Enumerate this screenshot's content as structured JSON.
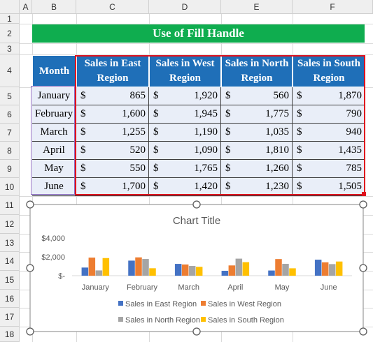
{
  "columns": [
    "A",
    "B",
    "C",
    "D",
    "E",
    "F"
  ],
  "rows": [
    "1",
    "2",
    "3",
    "4",
    "5",
    "6",
    "7",
    "8",
    "9",
    "10",
    "11",
    "12",
    "13",
    "14",
    "15",
    "16",
    "17",
    "18"
  ],
  "banner": {
    "title": "Use of Fill Handle"
  },
  "table": {
    "headers": [
      "Month",
      "Sales in East Region",
      "Sales in West Region",
      "Sales in North Region",
      "Sales in South Region"
    ],
    "currency": "$",
    "rows": [
      {
        "month": "January",
        "values": [
          "865",
          "1,920",
          "560",
          "1,870"
        ]
      },
      {
        "month": "February",
        "values": [
          "1,600",
          "1,945",
          "1,775",
          "790"
        ]
      },
      {
        "month": "March",
        "values": [
          "1,255",
          "1,190",
          "1,035",
          "940"
        ]
      },
      {
        "month": "April",
        "values": [
          "520",
          "1,090",
          "1,810",
          "1,435"
        ]
      },
      {
        "month": "May",
        "values": [
          "550",
          "1,765",
          "1,260",
          "785"
        ]
      },
      {
        "month": "June",
        "values": [
          "1,700",
          "1,420",
          "1,230",
          "1,505"
        ]
      }
    ]
  },
  "colors": {
    "header_fill": "#1f6fb8",
    "banner_fill": "#0fad4f",
    "selection_border": "#e0111d",
    "series": [
      "#4472c4",
      "#ed7d31",
      "#a5a5a5",
      "#ffc000"
    ]
  },
  "chart_data": {
    "type": "bar",
    "title": "Chart Title",
    "categories": [
      "January",
      "February",
      "March",
      "April",
      "May",
      "June"
    ],
    "series": [
      {
        "name": "Sales in East Region",
        "values": [
          865,
          1600,
          1255,
          520,
          550,
          1700
        ]
      },
      {
        "name": "Sales in West Region",
        "values": [
          1920,
          1945,
          1190,
          1090,
          1765,
          1420
        ]
      },
      {
        "name": "Sales in North Region",
        "values": [
          560,
          1775,
          1035,
          1810,
          1260,
          1230
        ]
      },
      {
        "name": "Sales in South Region",
        "values": [
          1870,
          790,
          940,
          1435,
          785,
          1505
        ]
      }
    ],
    "yticks": [
      "$4,000",
      "$2,000",
      "$-"
    ],
    "ylim": [
      0,
      4000
    ],
    "legend_position": "bottom"
  }
}
